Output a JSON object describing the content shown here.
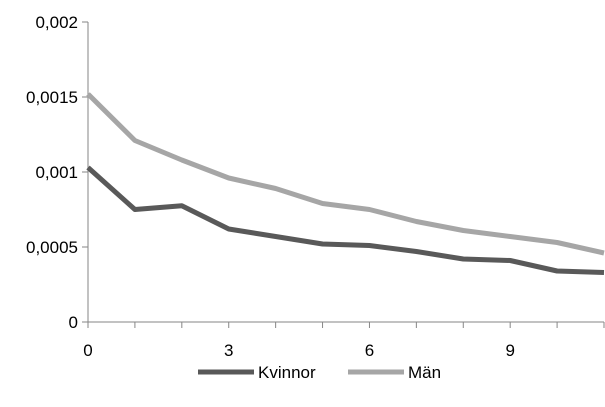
{
  "chart_data": {
    "type": "line",
    "title": "",
    "xlabel": "",
    "ylabel": "",
    "x": [
      0,
      1,
      2,
      3,
      4,
      5,
      6,
      7,
      8,
      9,
      10,
      11
    ],
    "xlim": [
      0,
      11
    ],
    "ylim": [
      0,
      0.002
    ],
    "x_ticks": [
      {
        "value": 0,
        "label": "0"
      },
      {
        "value": 3,
        "label": "3"
      },
      {
        "value": 6,
        "label": "6"
      },
      {
        "value": 9,
        "label": "9"
      }
    ],
    "y_ticks": [
      {
        "value": 0,
        "label": "0"
      },
      {
        "value": 0.0005,
        "label": "0,0005"
      },
      {
        "value": 0.001,
        "label": "0,001"
      },
      {
        "value": 0.0015,
        "label": "0,0015"
      },
      {
        "value": 0.002,
        "label": "0,002"
      }
    ],
    "grid": false,
    "legend_position": "bottom",
    "series": [
      {
        "name": "Kvinnor",
        "color": "#595959",
        "values": [
          0.00103,
          0.00075,
          0.000775,
          0.00062,
          0.00057,
          0.00052,
          0.00051,
          0.00047,
          0.00042,
          0.00041,
          0.00034,
          0.00033
        ]
      },
      {
        "name": "Män",
        "color": "#a6a6a6",
        "values": [
          0.00152,
          0.00121,
          0.00108,
          0.00096,
          0.00089,
          0.00079,
          0.00075,
          0.00067,
          0.00061,
          0.00057,
          0.00053,
          0.00046
        ]
      }
    ]
  }
}
